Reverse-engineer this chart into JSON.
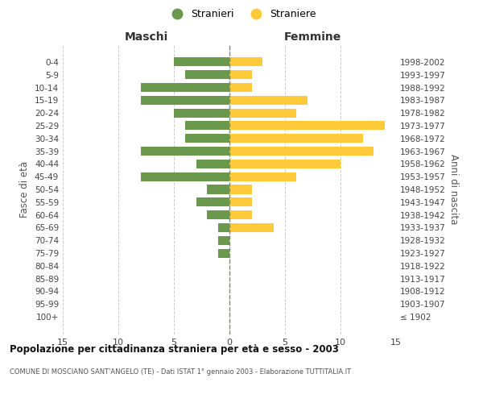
{
  "age_groups": [
    "100+",
    "95-99",
    "90-94",
    "85-89",
    "80-84",
    "75-79",
    "70-74",
    "65-69",
    "60-64",
    "55-59",
    "50-54",
    "45-49",
    "40-44",
    "35-39",
    "30-34",
    "25-29",
    "20-24",
    "15-19",
    "10-14",
    "5-9",
    "0-4"
  ],
  "birth_years": [
    "≤ 1902",
    "1903-1907",
    "1908-1912",
    "1913-1917",
    "1918-1922",
    "1923-1927",
    "1928-1932",
    "1933-1937",
    "1938-1942",
    "1943-1947",
    "1948-1952",
    "1953-1957",
    "1958-1962",
    "1963-1967",
    "1968-1972",
    "1973-1977",
    "1978-1982",
    "1983-1987",
    "1988-1992",
    "1993-1997",
    "1998-2002"
  ],
  "maschi": [
    0,
    0,
    0,
    0,
    0,
    1,
    1,
    1,
    2,
    3,
    2,
    8,
    3,
    8,
    4,
    4,
    5,
    8,
    8,
    4,
    5
  ],
  "femmine": [
    0,
    0,
    0,
    0,
    0,
    0,
    0,
    4,
    2,
    2,
    2,
    6,
    10,
    13,
    12,
    14,
    6,
    7,
    2,
    2,
    3
  ],
  "maschi_color": "#6a994e",
  "femmine_color": "#ffca3a",
  "title": "Popolazione per cittadinanza straniera per età e sesso - 2003",
  "subtitle": "COMUNE DI MOSCIANO SANT'ANGELO (TE) - Dati ISTAT 1° gennaio 2003 - Elaborazione TUTTITALIA.IT",
  "xlabel_left": "Maschi",
  "xlabel_right": "Femmine",
  "ylabel_left": "Fasce di età",
  "ylabel_right": "Anni di nascita",
  "legend_maschi": "Stranieri",
  "legend_femmine": "Straniere",
  "xlim": 15,
  "background_color": "#ffffff",
  "grid_color": "#cccccc"
}
